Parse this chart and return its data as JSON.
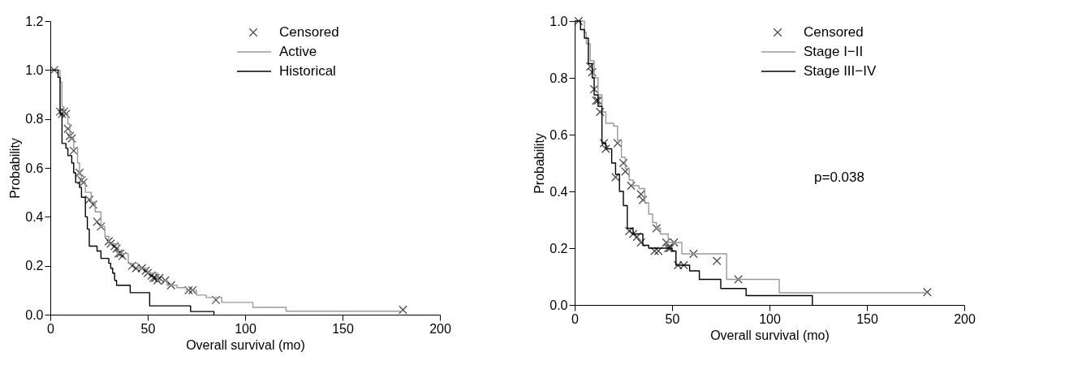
{
  "chart_data": [
    {
      "type": "step",
      "xlabel": "Overall survival (mo)",
      "ylabel": "Probability",
      "xlim": [
        0,
        200
      ],
      "ylim": [
        0,
        1.2
      ],
      "xticks": [
        0,
        50,
        100,
        150,
        200
      ],
      "yticks": [
        {
          "value": 0,
          "label": "0.0"
        },
        {
          "value": 0.2,
          "label": "0.2"
        },
        {
          "value": 0.4,
          "label": "0.4"
        },
        {
          "value": 0.6,
          "label": "0.6"
        },
        {
          "value": 0.8,
          "label": "0.8"
        },
        {
          "value": 1,
          "label": "1.0"
        },
        {
          "value": 1.2,
          "label": "1.2"
        }
      ],
      "legend": "top right",
      "series": [
        {
          "name": "Censored",
          "type": "scatter",
          "marker": "cross",
          "color": "#000000",
          "x": [
            2,
            5,
            6,
            7,
            8,
            9,
            10,
            11,
            12,
            15,
            16,
            17,
            20,
            22,
            24,
            26,
            30,
            31,
            33,
            34,
            35,
            36,
            37,
            42,
            44,
            47,
            49,
            50,
            52,
            53,
            54,
            55,
            56,
            59,
            62,
            71,
            73,
            85,
            181
          ],
          "values": [
            1.0,
            0.83,
            0.82,
            0.83,
            0.82,
            0.76,
            0.73,
            0.72,
            0.67,
            0.58,
            0.55,
            0.54,
            0.47,
            0.45,
            0.38,
            0.36,
            0.3,
            0.29,
            0.28,
            0.27,
            0.25,
            0.25,
            0.24,
            0.2,
            0.19,
            0.19,
            0.18,
            0.17,
            0.16,
            0.15,
            0.15,
            0.14,
            0.15,
            0.14,
            0.12,
            0.1,
            0.1,
            0.06,
            0.02
          ]
        },
        {
          "name": "Active",
          "color": "#999999",
          "x": [
            0,
            5,
            6,
            7,
            9,
            10,
            12,
            14,
            15,
            16,
            18,
            21,
            23,
            26,
            28,
            30,
            35,
            40,
            45,
            50,
            55,
            60,
            65,
            70,
            75,
            80,
            88,
            104,
            121,
            181
          ],
          "values": [
            1.0,
            0.95,
            0.85,
            0.82,
            0.78,
            0.72,
            0.68,
            0.62,
            0.57,
            0.54,
            0.5,
            0.46,
            0.42,
            0.36,
            0.32,
            0.29,
            0.25,
            0.21,
            0.19,
            0.17,
            0.14,
            0.12,
            0.11,
            0.1,
            0.08,
            0.07,
            0.05,
            0.03,
            0.014,
            0.014
          ]
        },
        {
          "name": "Historical",
          "color": "#000000",
          "x": [
            0,
            4,
            5,
            6,
            8,
            9,
            11,
            12,
            13,
            15,
            16,
            18,
            19,
            20,
            24,
            26,
            30,
            31,
            32,
            33,
            34,
            41,
            51,
            72,
            84
          ],
          "values": [
            1.0,
            0.97,
            0.82,
            0.7,
            0.68,
            0.65,
            0.62,
            0.58,
            0.54,
            0.52,
            0.48,
            0.4,
            0.35,
            0.28,
            0.26,
            0.23,
            0.21,
            0.19,
            0.17,
            0.14,
            0.12,
            0.09,
            0.036,
            0.013,
            0.0
          ]
        }
      ]
    },
    {
      "type": "step",
      "xlabel": "Overall survival (mo)",
      "ylabel": "Probability",
      "xlim": [
        0,
        200
      ],
      "ylim": [
        0,
        1.0
      ],
      "xticks": [
        0,
        50,
        100,
        150,
        200
      ],
      "yticks": [
        {
          "value": 0,
          "label": "0.0"
        },
        {
          "value": 0.2,
          "label": "0.2"
        },
        {
          "value": 0.4,
          "label": "0.4"
        },
        {
          "value": 0.6,
          "label": "0.6"
        },
        {
          "value": 0.8,
          "label": "0.8"
        },
        {
          "value": 1,
          "label": "1.0"
        }
      ],
      "legend": "top right",
      "annotations": [
        "p=0.038"
      ],
      "series": [
        {
          "name": "Censored",
          "type": "scatter",
          "marker": "cross",
          "color": "#000000",
          "x": [
            2,
            8,
            9,
            10,
            11,
            12,
            13,
            15,
            16,
            22,
            21,
            25,
            26,
            29,
            34,
            35,
            28,
            30,
            32,
            34,
            42,
            41,
            43,
            47,
            48,
            49,
            51,
            53,
            56,
            61,
            73,
            84,
            181
          ],
          "values": [
            1.0,
            0.84,
            0.82,
            0.76,
            0.72,
            0.72,
            0.68,
            0.57,
            0.55,
            0.57,
            0.45,
            0.5,
            0.47,
            0.42,
            0.39,
            0.37,
            0.26,
            0.25,
            0.24,
            0.22,
            0.27,
            0.19,
            0.19,
            0.22,
            0.2,
            0.2,
            0.22,
            0.14,
            0.14,
            0.18,
            0.155,
            0.09,
            0.045
          ]
        },
        {
          "name": "Stage I−II",
          "color": "#999999",
          "x": [
            0,
            5,
            6,
            8,
            10,
            12,
            14,
            16,
            20,
            22,
            24,
            26,
            28,
            30,
            33,
            36,
            38,
            40,
            42,
            44,
            48,
            55,
            78,
            105,
            181
          ],
          "values": [
            1.0,
            0.96,
            0.92,
            0.86,
            0.8,
            0.74,
            0.68,
            0.64,
            0.63,
            0.58,
            0.52,
            0.48,
            0.44,
            0.42,
            0.41,
            0.36,
            0.32,
            0.29,
            0.27,
            0.25,
            0.22,
            0.18,
            0.09,
            0.043,
            0.043
          ]
        },
        {
          "name": "Stage III−IV",
          "color": "#000000",
          "x": [
            0,
            3,
            5,
            7,
            9,
            10,
            12,
            14,
            16,
            19,
            21,
            23,
            25,
            27,
            30,
            35,
            38,
            50,
            52,
            59,
            64,
            75,
            88,
            122
          ],
          "values": [
            1.0,
            0.97,
            0.94,
            0.85,
            0.8,
            0.74,
            0.7,
            0.57,
            0.55,
            0.5,
            0.46,
            0.4,
            0.35,
            0.27,
            0.25,
            0.21,
            0.2,
            0.19,
            0.14,
            0.12,
            0.09,
            0.058,
            0.033,
            0.0
          ]
        }
      ]
    }
  ]
}
